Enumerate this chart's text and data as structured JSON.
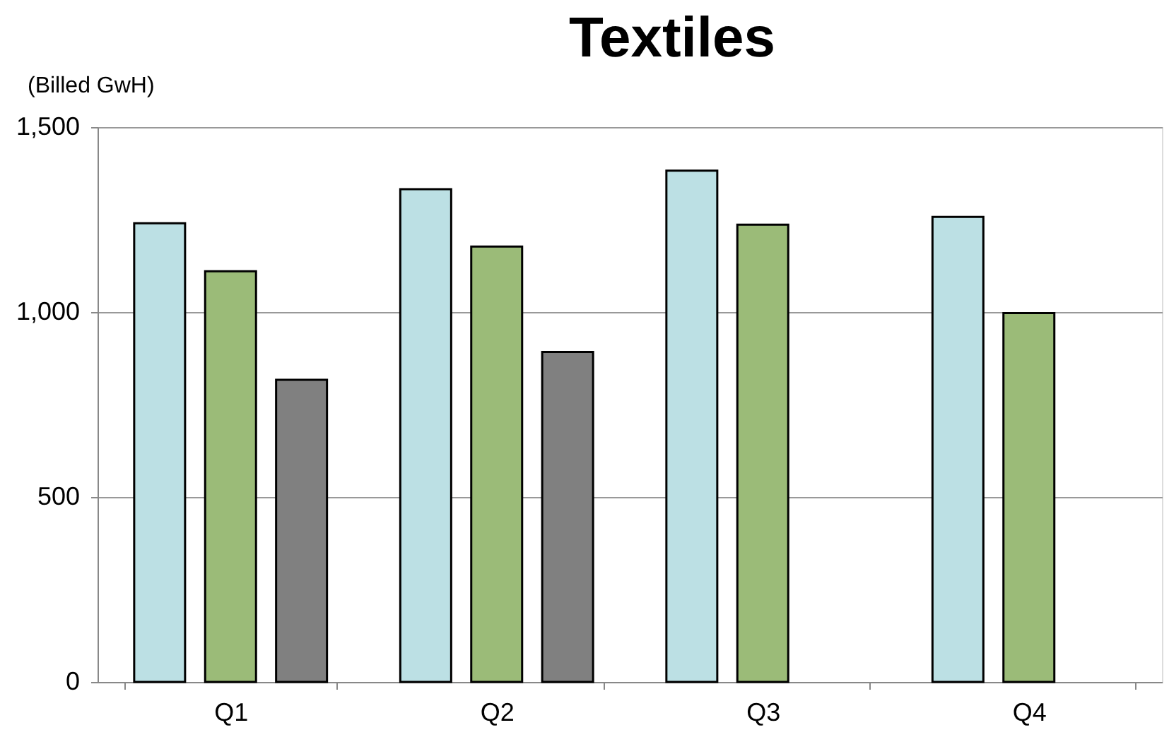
{
  "chart_data": {
    "type": "bar",
    "title": "Textiles",
    "ylabel": "(Billed GwH)",
    "categories": [
      "Q1",
      "Q2",
      "Q3",
      "Q4"
    ],
    "series": [
      {
        "color": "#bce0e4",
        "values": [
          1240,
          1332,
          1382,
          1257
        ]
      },
      {
        "color": "#9bbb78",
        "values": [
          1110,
          1177,
          1236,
          997
        ]
      },
      {
        "color": "#808080",
        "values": [
          817,
          892,
          null,
          null
        ]
      }
    ],
    "ylim": [
      0,
      1500
    ],
    "yticks": [
      0,
      {
        "value": 500,
        "label": "500"
      },
      {
        "value": 1000,
        "label": "1,000"
      },
      {
        "value": 1500,
        "label": "1,500"
      }
    ],
    "grid": "y",
    "legend": false
  }
}
